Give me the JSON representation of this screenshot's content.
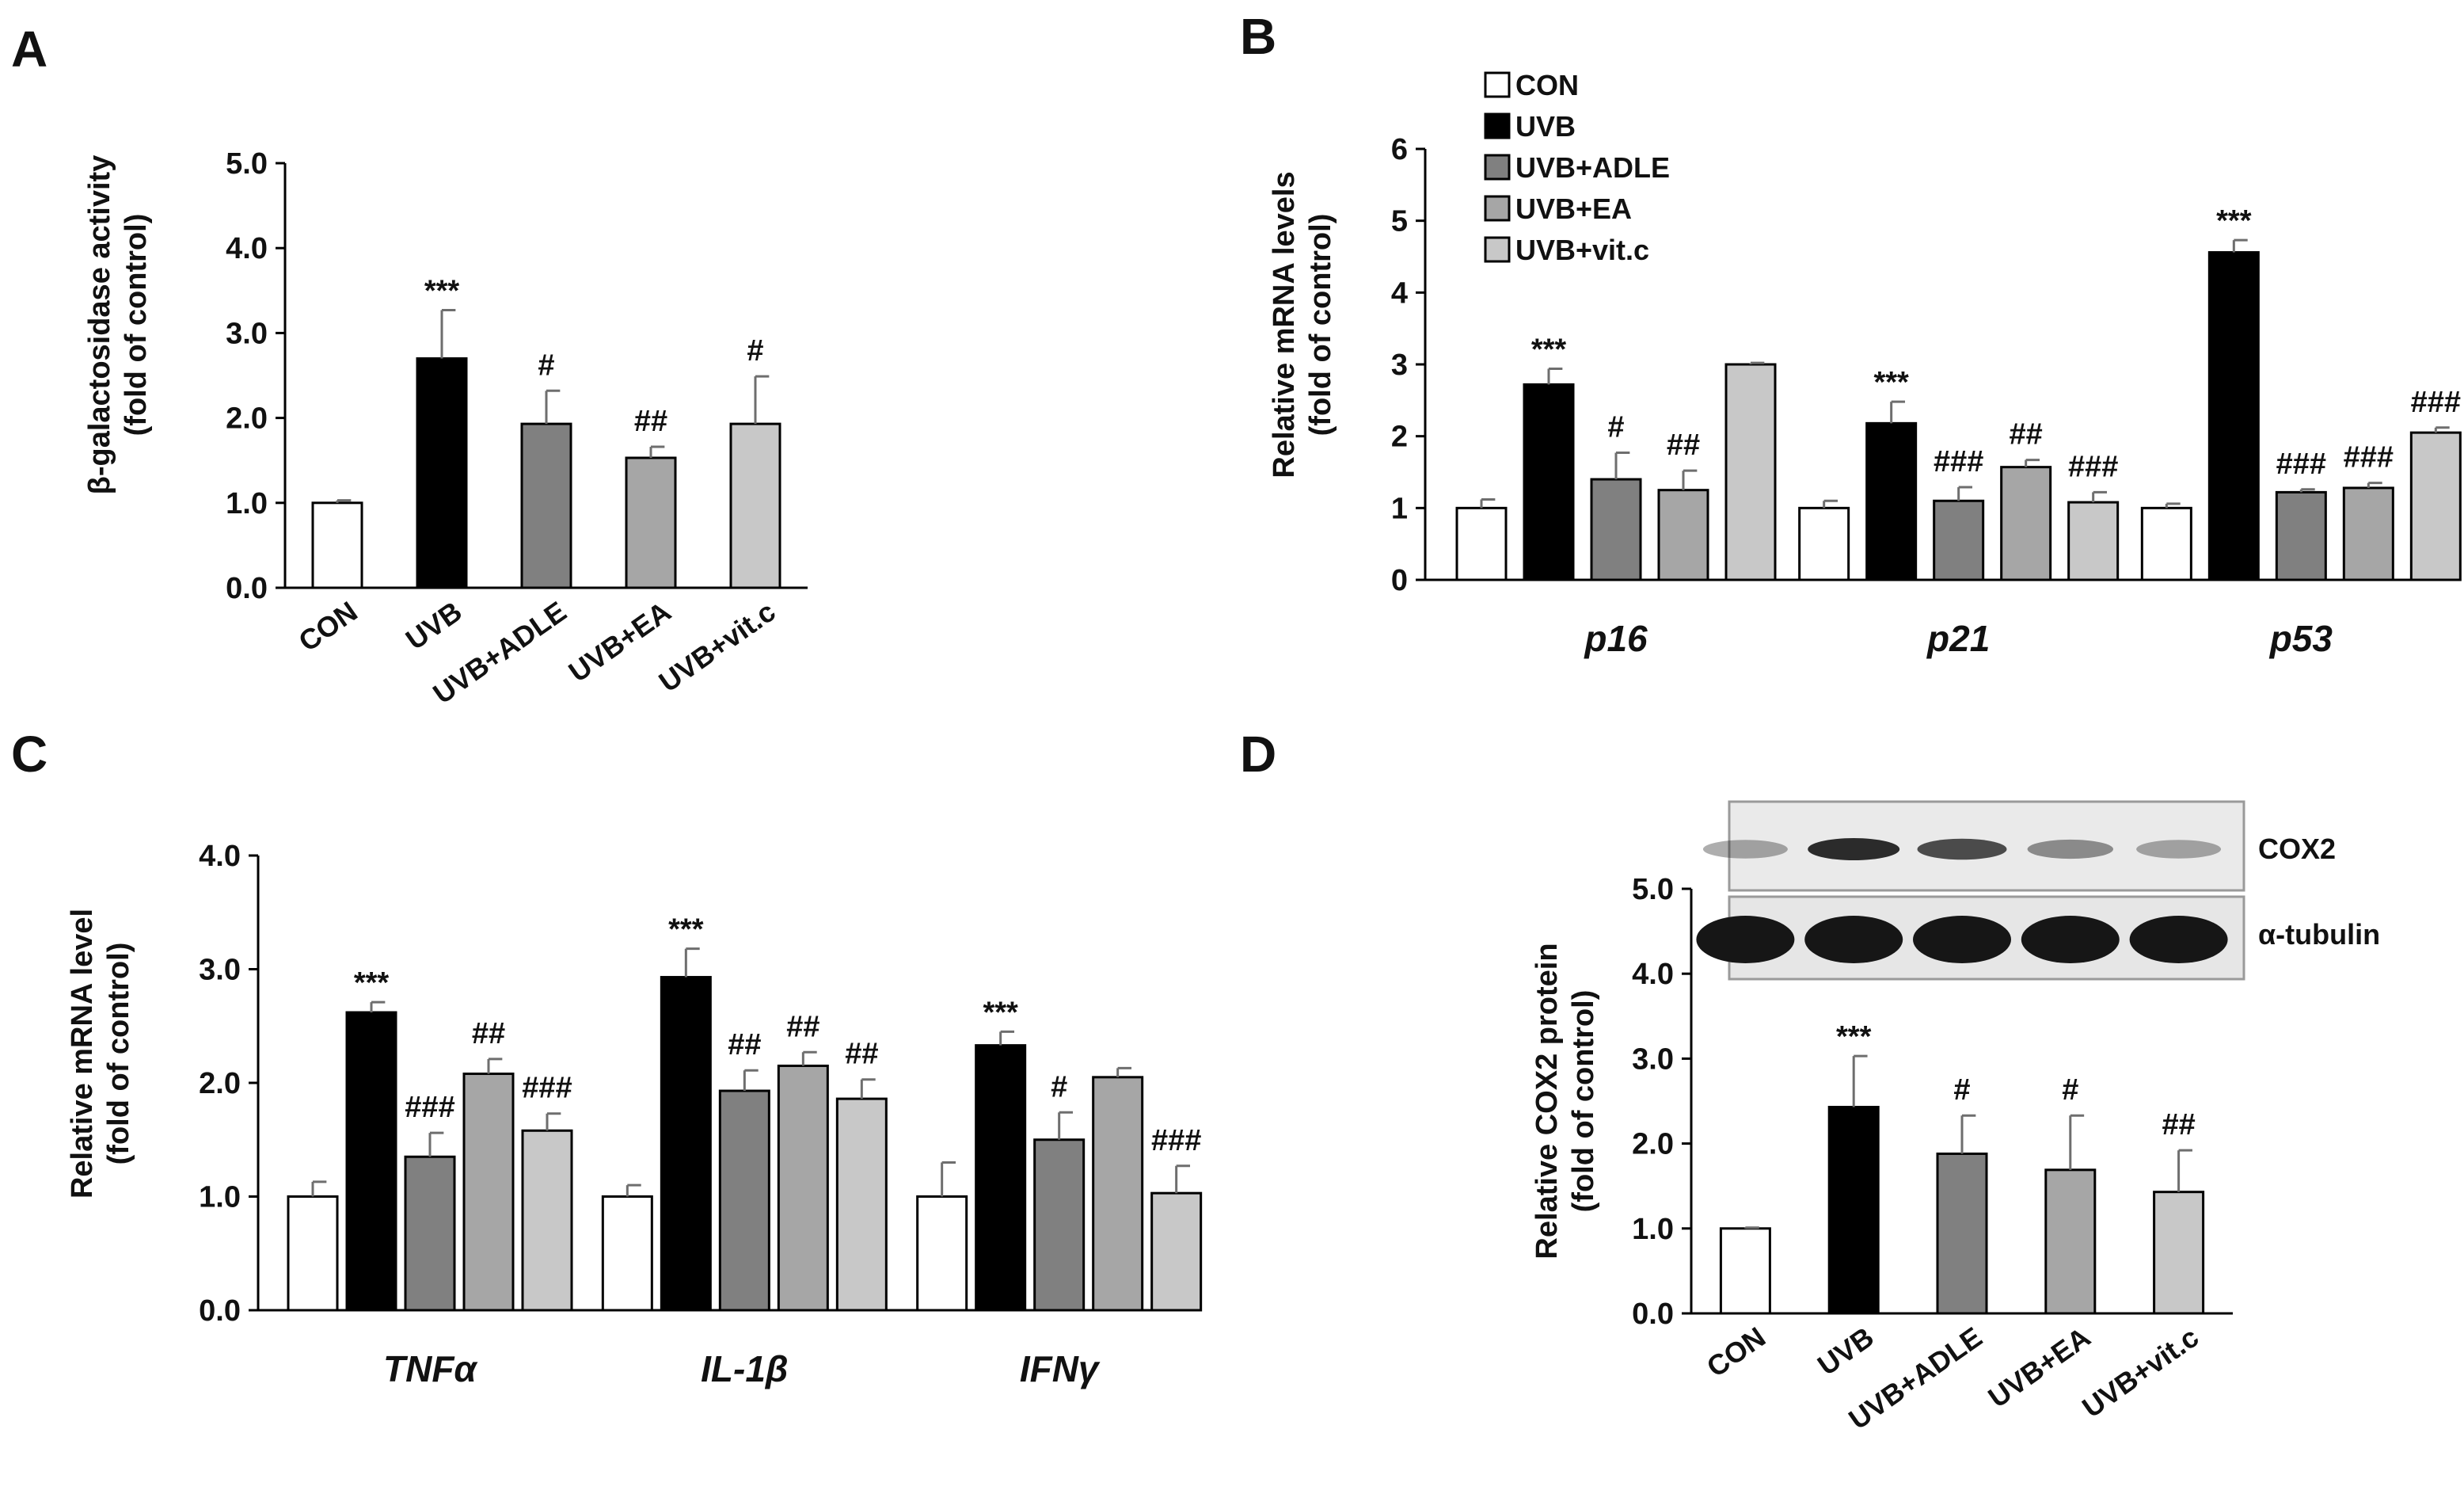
{
  "chart_data": [
    {
      "panel": "A",
      "type": "bar",
      "ylabel_line1": "β-galactosidase activity",
      "ylabel_line2": "(fold of control)",
      "ylim": [
        0,
        5
      ],
      "yticks": [
        "0.0",
        "1.0",
        "2.0",
        "3.0",
        "4.0",
        "5.0"
      ],
      "categories": [
        "CON",
        "UVB",
        "UVB+ADLE",
        "UVB+EA",
        "UVB+vit.c"
      ],
      "values": [
        1.0,
        2.7,
        1.93,
        1.53,
        1.93
      ],
      "errors": [
        0.03,
        0.57,
        0.39,
        0.13,
        0.56
      ],
      "significance": [
        "",
        "***",
        "#",
        "##",
        "#"
      ]
    },
    {
      "panel": "B",
      "type": "bar",
      "ylabel_line1": "Relative mRNA levels",
      "ylabel_line2": "(fold of control)",
      "ylim": [
        0,
        6
      ],
      "yticks": [
        "0",
        "1",
        "2",
        "3",
        "4",
        "5",
        "6"
      ],
      "groups": [
        "p16",
        "p21",
        "p53"
      ],
      "legend": [
        "CON",
        "UVB",
        "UVB+ADLE",
        "UVB+EA",
        "UVB+vit.c"
      ],
      "series": [
        {
          "name": "CON",
          "values": [
            1.0,
            1.0,
            1.0
          ],
          "errors": [
            0.12,
            0.1,
            0.06
          ]
        },
        {
          "name": "UVB",
          "values": [
            2.72,
            2.18,
            4.56
          ],
          "errors": [
            0.22,
            0.3,
            0.17
          ]
        },
        {
          "name": "UVB+ADLE",
          "values": [
            1.4,
            1.1,
            1.22
          ],
          "errors": [
            0.37,
            0.19,
            0.04
          ]
        },
        {
          "name": "UVB+EA",
          "values": [
            1.25,
            1.57,
            1.28
          ],
          "errors": [
            0.27,
            0.1,
            0.07
          ]
        },
        {
          "name": "UVB+vit.c",
          "values": [
            3.0,
            1.08,
            2.05
          ],
          "errors": [
            0.02,
            0.14,
            0.07
          ]
        }
      ],
      "significance": [
        [
          "",
          "***",
          "#",
          "##",
          ""
        ],
        [
          "",
          "***",
          "###",
          "##",
          "###"
        ],
        [
          "",
          "***",
          "###",
          "###",
          "###"
        ]
      ]
    },
    {
      "panel": "C",
      "type": "bar",
      "ylabel_line1": "Relative mRNA level",
      "ylabel_line2": "(fold of control)",
      "ylim": [
        0,
        4
      ],
      "yticks": [
        "0.0",
        "1.0",
        "2.0",
        "3.0",
        "4.0"
      ],
      "groups": [
        "TNFα",
        "IL-1β",
        "IFNγ"
      ],
      "series": [
        {
          "name": "CON",
          "values": [
            1.0,
            1.0,
            1.0
          ],
          "errors": [
            0.13,
            0.1,
            0.3
          ]
        },
        {
          "name": "UVB",
          "values": [
            2.62,
            2.93,
            2.33
          ],
          "errors": [
            0.09,
            0.25,
            0.12
          ]
        },
        {
          "name": "UVB+ADLE",
          "values": [
            1.35,
            1.93,
            1.5
          ],
          "errors": [
            0.21,
            0.18,
            0.24
          ]
        },
        {
          "name": "UVB+EA",
          "values": [
            2.08,
            2.15,
            2.05
          ],
          "errors": [
            0.13,
            0.12,
            0.08
          ]
        },
        {
          "name": "UVB+vit.c",
          "values": [
            1.58,
            1.86,
            1.03
          ],
          "errors": [
            0.15,
            0.17,
            0.24
          ]
        }
      ],
      "significance": [
        [
          "",
          "***",
          "###",
          "##",
          "###"
        ],
        [
          "",
          "***",
          "##",
          "##",
          "##"
        ],
        [
          "",
          "***",
          "#",
          "",
          "###"
        ]
      ]
    },
    {
      "panel": "D",
      "type": "bar",
      "ylabel_line1": "Relative COX2 protein",
      "ylabel_line2": "(fold of control)",
      "ylim": [
        0,
        5
      ],
      "yticks": [
        "0.0",
        "1.0",
        "2.0",
        "3.0",
        "4.0",
        "5.0"
      ],
      "categories": [
        "CON",
        "UVB",
        "UVB+ADLE",
        "UVB+EA",
        "UVB+vit.c"
      ],
      "values": [
        1.0,
        2.43,
        1.88,
        1.69,
        1.43
      ],
      "errors": [
        0.01,
        0.6,
        0.45,
        0.64,
        0.49
      ],
      "significance": [
        "",
        "***",
        "#",
        "#",
        "##"
      ],
      "blot_labels": [
        "COX2",
        "α-tubulin"
      ]
    }
  ],
  "colors": {
    "series": [
      "#ffffff",
      "#000000",
      "#808080",
      "#a6a6a6",
      "#c8c8c8"
    ],
    "error_bar": "#6e6e6e",
    "axis": "#000000",
    "blot_bg": "#e9e9e9",
    "band": "#161616"
  }
}
